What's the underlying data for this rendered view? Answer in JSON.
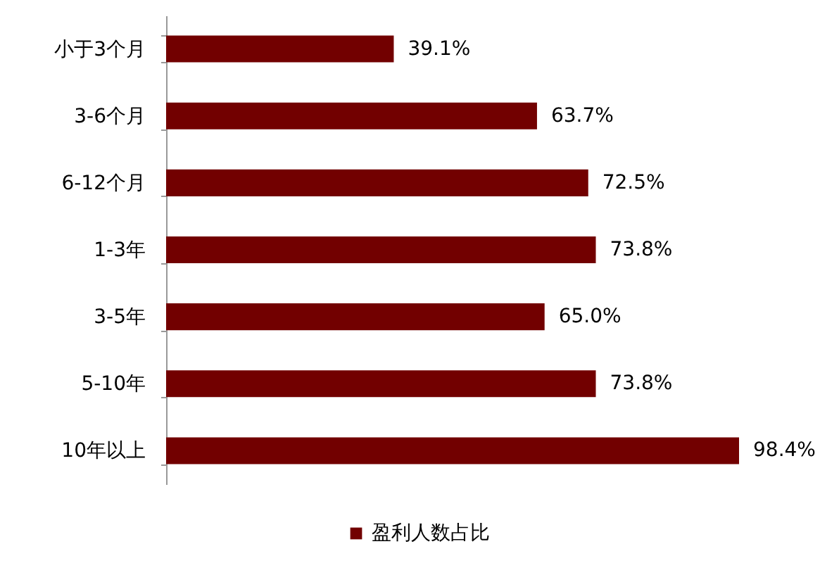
{
  "chart_data": {
    "type": "bar",
    "orientation": "horizontal",
    "categories": [
      "小于3个月",
      "3-6个月",
      "6-12个月",
      "1-3年",
      "3-5年",
      "5-10年",
      "10年以上"
    ],
    "series": [
      {
        "name": "盈利人数占比",
        "color": "#720000",
        "values": [
          39.1,
          63.7,
          72.5,
          73.8,
          65.0,
          73.8,
          98.4
        ],
        "value_labels": [
          "39.1%",
          "63.7%",
          "72.5%",
          "73.8%",
          "65.0%",
          "73.8%",
          "98.4%"
        ]
      }
    ],
    "legend": "bottom",
    "grid": false
  }
}
